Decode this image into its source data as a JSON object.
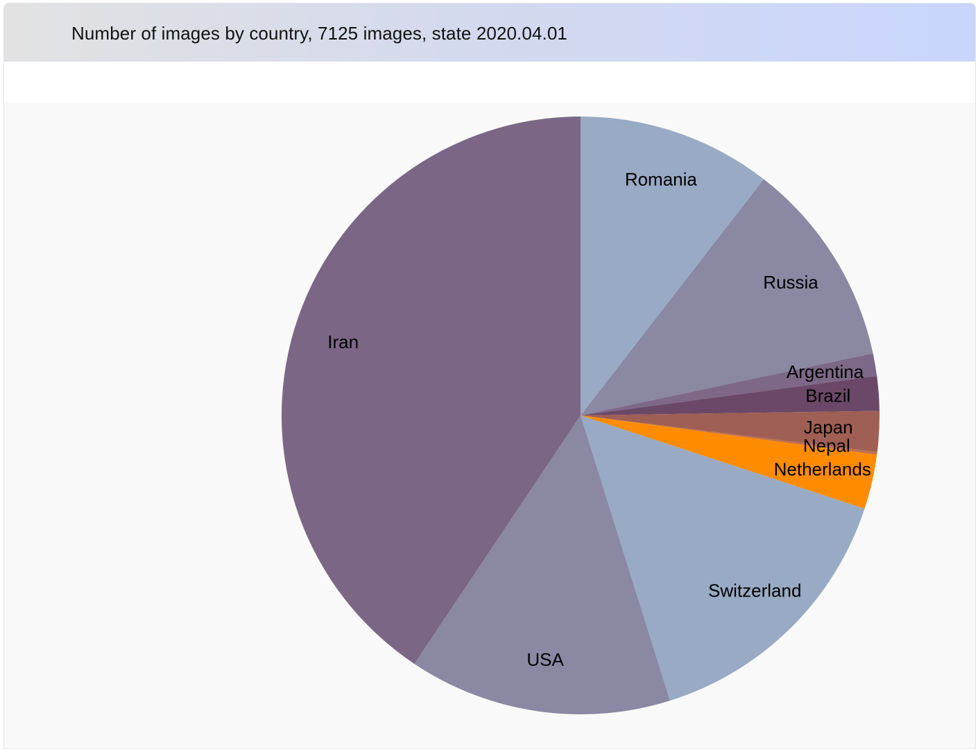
{
  "header": {
    "title": "Number of images by country, 7125 images, state 2020.04.01"
  },
  "chart_data": {
    "type": "pie",
    "title": "Number of images by country, 7125 images, state 2020.04.01",
    "start_angle_deg": 0,
    "direction": "clockwise",
    "slices": [
      {
        "label": "Romania",
        "value": 748,
        "color": "#98aac4"
      },
      {
        "label": "Russia",
        "value": 796,
        "color": "#8a88a3"
      },
      {
        "label": "Argentina",
        "value": 87,
        "color": "#7d6887"
      },
      {
        "label": "Brazil",
        "value": 133,
        "color": "#6b4868"
      },
      {
        "label": "Japan",
        "value": 157,
        "color": "#a05f54"
      },
      {
        "label": "Nepal",
        "value": 10,
        "color": "#c2714a"
      },
      {
        "label": "Netherlands",
        "value": 210,
        "color": "#ff8c00"
      },
      {
        "label": "Switzerland",
        "value": 1077,
        "color": "#98aac4"
      },
      {
        "label": "USA",
        "value": 1013,
        "color": "#8a88a3"
      },
      {
        "label": "Iran",
        "value": 2894,
        "color": "#7b6785"
      }
    ]
  }
}
